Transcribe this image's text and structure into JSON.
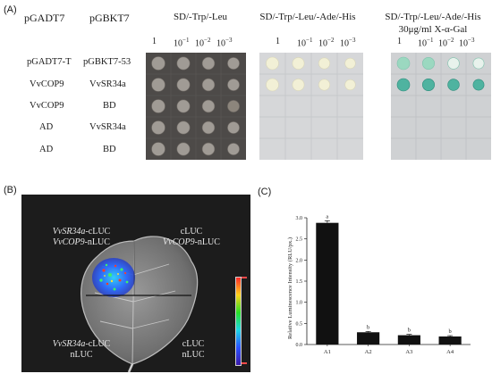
{
  "panel_a": {
    "letter": "(A)",
    "col_prey": "pGADT7",
    "col_bait": "pGBKT7",
    "rows": [
      {
        "prey": "pGADT7-T",
        "bait": "pGBKT7-53"
      },
      {
        "prey": "VvCOP9",
        "bait": "VvSR34a"
      },
      {
        "prey": "VvCOP9",
        "bait": "BD"
      },
      {
        "prey": "AD",
        "bait": "VvSR34a"
      },
      {
        "prey": "AD",
        "bait": "BD"
      }
    ],
    "conditions": [
      {
        "line1": "SD/-Trp/-Leu",
        "line2": ""
      },
      {
        "line1": "SD/-Trp/-Leu/-Ade/-His",
        "line2": ""
      },
      {
        "line1": "SD/-Trp/-Leu/-Ade/-His",
        "line2": "30μg/ml X-α-Gal"
      }
    ],
    "dilutions": {
      "d0": "1",
      "base": "10",
      "e1": "−1",
      "e2": "−2",
      "e3": "−3"
    }
  },
  "panel_b": {
    "letter": "(B)",
    "top_left": {
      "a_italic": "VvSR34a",
      "a_rest": "-cLUC",
      "b_italic": "VvCOP9",
      "b_rest": "-nLUC"
    },
    "top_right": {
      "a": "cLUC",
      "b_italic": "VvCOP9",
      "b_rest": "-nLUC"
    },
    "bottom_left": {
      "a_italic": "VvSR34a",
      "a_rest": "-cLUC",
      "b": "nLUC"
    },
    "bottom_right": {
      "a": "cLUC",
      "b": "nLUC"
    },
    "scale_colors": [
      "#ff2a2a",
      "#ffd21a",
      "#28e028",
      "#1ed6e6",
      "#2a52ff",
      "#3a1aa8"
    ]
  },
  "panel_c": {
    "letter": "(C)",
    "chart_data": {
      "type": "bar",
      "categories": [
        "A1",
        "A2",
        "A3",
        "A4"
      ],
      "values": [
        2.88,
        0.29,
        0.22,
        0.19
      ],
      "errors": [
        0.05,
        0.02,
        0.02,
        0.02
      ],
      "significance": [
        "a",
        "b",
        "b",
        "b"
      ],
      "ylabel": "Relative Luminescence Intensity (RLU/px.)",
      "xlabel": "",
      "ylim": [
        0,
        3.0
      ],
      "yticks": [
        "0.0",
        "0.5",
        "1.0",
        "1.5",
        "2.0",
        "2.5",
        "3.0"
      ],
      "ytick_values": [
        0,
        0.5,
        1.0,
        1.5,
        2.0,
        2.5,
        3.0
      ],
      "bar_color": "#111111",
      "grid": false
    }
  }
}
